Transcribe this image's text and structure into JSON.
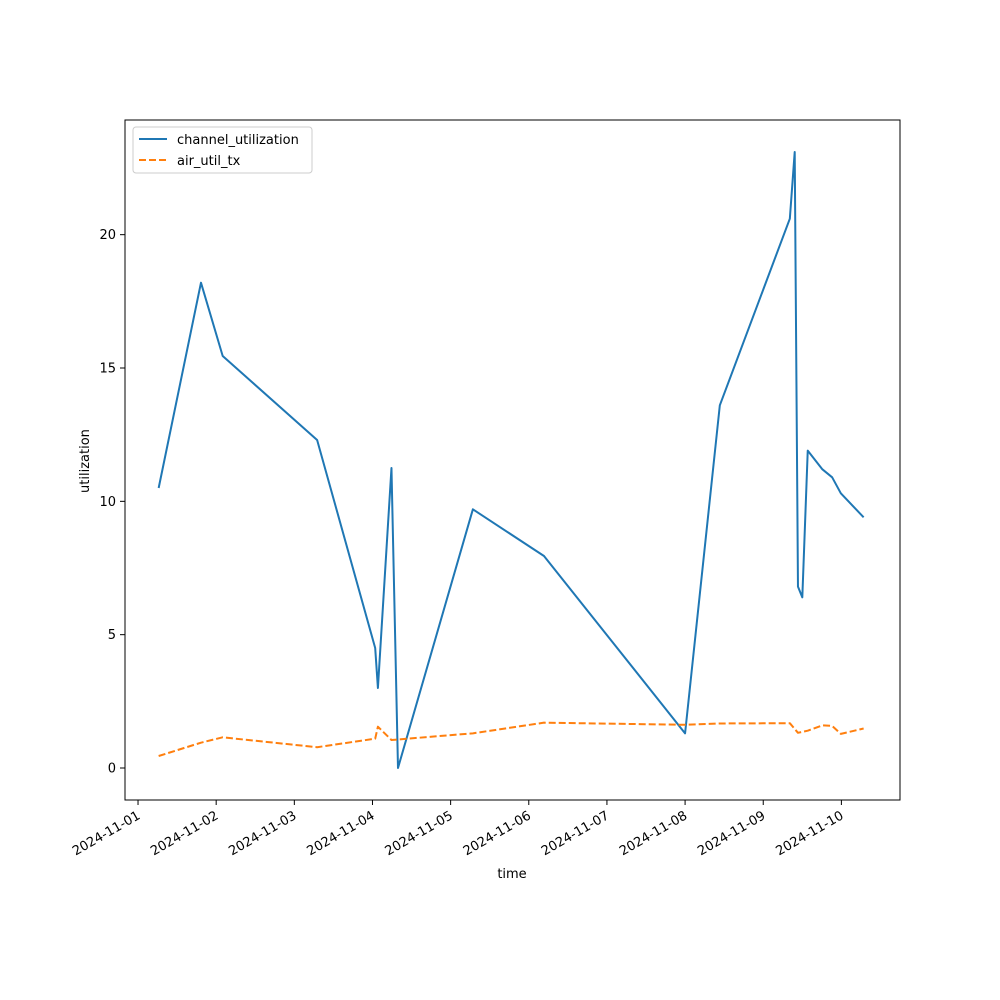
{
  "chart_data": {
    "type": "line",
    "title": "",
    "xlabel": "time",
    "ylabel": "utilization",
    "x_type": "datetime",
    "xlim": [
      "2024-11-00T20:00",
      "2024-11-10T18:00"
    ],
    "ylim": [
      -1.2,
      24.3
    ],
    "xticks": [
      "2024-11-01",
      "2024-11-02",
      "2024-11-03",
      "2024-11-04",
      "2024-11-05",
      "2024-11-06",
      "2024-11-07",
      "2024-11-08",
      "2024-11-09",
      "2024-11-10"
    ],
    "yticks": [
      0,
      5,
      10,
      15,
      20
    ],
    "grid": false,
    "legend_position": "upper-left",
    "series": [
      {
        "name": "channel_utilization",
        "color": "#1f77b4",
        "style": "solid",
        "points": [
          [
            "2024-11-01T06:20",
            10.5
          ],
          [
            "2024-11-01T19:20",
            18.2
          ],
          [
            "2024-11-02T02:00",
            15.45
          ],
          [
            "2024-11-03T07:00",
            12.3
          ],
          [
            "2024-11-04T00:50",
            4.5
          ],
          [
            "2024-11-04T01:40",
            3.0
          ],
          [
            "2024-11-04T05:50",
            11.25
          ],
          [
            "2024-11-04T07:50",
            0.0
          ],
          [
            "2024-11-05T06:50",
            9.7
          ],
          [
            "2024-11-06T04:40",
            7.95
          ],
          [
            "2024-11-08T00:00",
            1.3
          ],
          [
            "2024-11-08T10:40",
            13.6
          ],
          [
            "2024-11-09T08:10",
            20.6
          ],
          [
            "2024-11-09T09:40",
            23.1
          ],
          [
            "2024-11-09T10:40",
            6.8
          ],
          [
            "2024-11-09T12:00",
            6.4
          ],
          [
            "2024-11-09T13:40",
            11.9
          ],
          [
            "2024-11-09T18:10",
            11.2
          ],
          [
            "2024-11-09T21:10",
            10.9
          ],
          [
            "2024-11-09T23:50",
            10.3
          ],
          [
            "2024-11-10T06:50",
            9.4
          ]
        ]
      },
      {
        "name": "air_util_tx",
        "color": "#ff7f0e",
        "style": "dashed",
        "points": [
          [
            "2024-11-01T06:20",
            0.45
          ],
          [
            "2024-11-01T19:20",
            0.95
          ],
          [
            "2024-11-02T02:00",
            1.15
          ],
          [
            "2024-11-03T07:00",
            0.78
          ],
          [
            "2024-11-04T00:50",
            1.1
          ],
          [
            "2024-11-04T01:40",
            1.55
          ],
          [
            "2024-11-04T05:50",
            1.05
          ],
          [
            "2024-11-05T06:50",
            1.3
          ],
          [
            "2024-11-06T04:40",
            1.7
          ],
          [
            "2024-11-08T00:00",
            1.62
          ],
          [
            "2024-11-08T10:40",
            1.67
          ],
          [
            "2024-11-09T08:10",
            1.68
          ],
          [
            "2024-11-09T10:40",
            1.32
          ],
          [
            "2024-11-09T13:40",
            1.4
          ],
          [
            "2024-11-09T18:10",
            1.6
          ],
          [
            "2024-11-09T21:10",
            1.58
          ],
          [
            "2024-11-09T23:50",
            1.28
          ],
          [
            "2024-11-10T06:50",
            1.48
          ]
        ]
      }
    ]
  }
}
